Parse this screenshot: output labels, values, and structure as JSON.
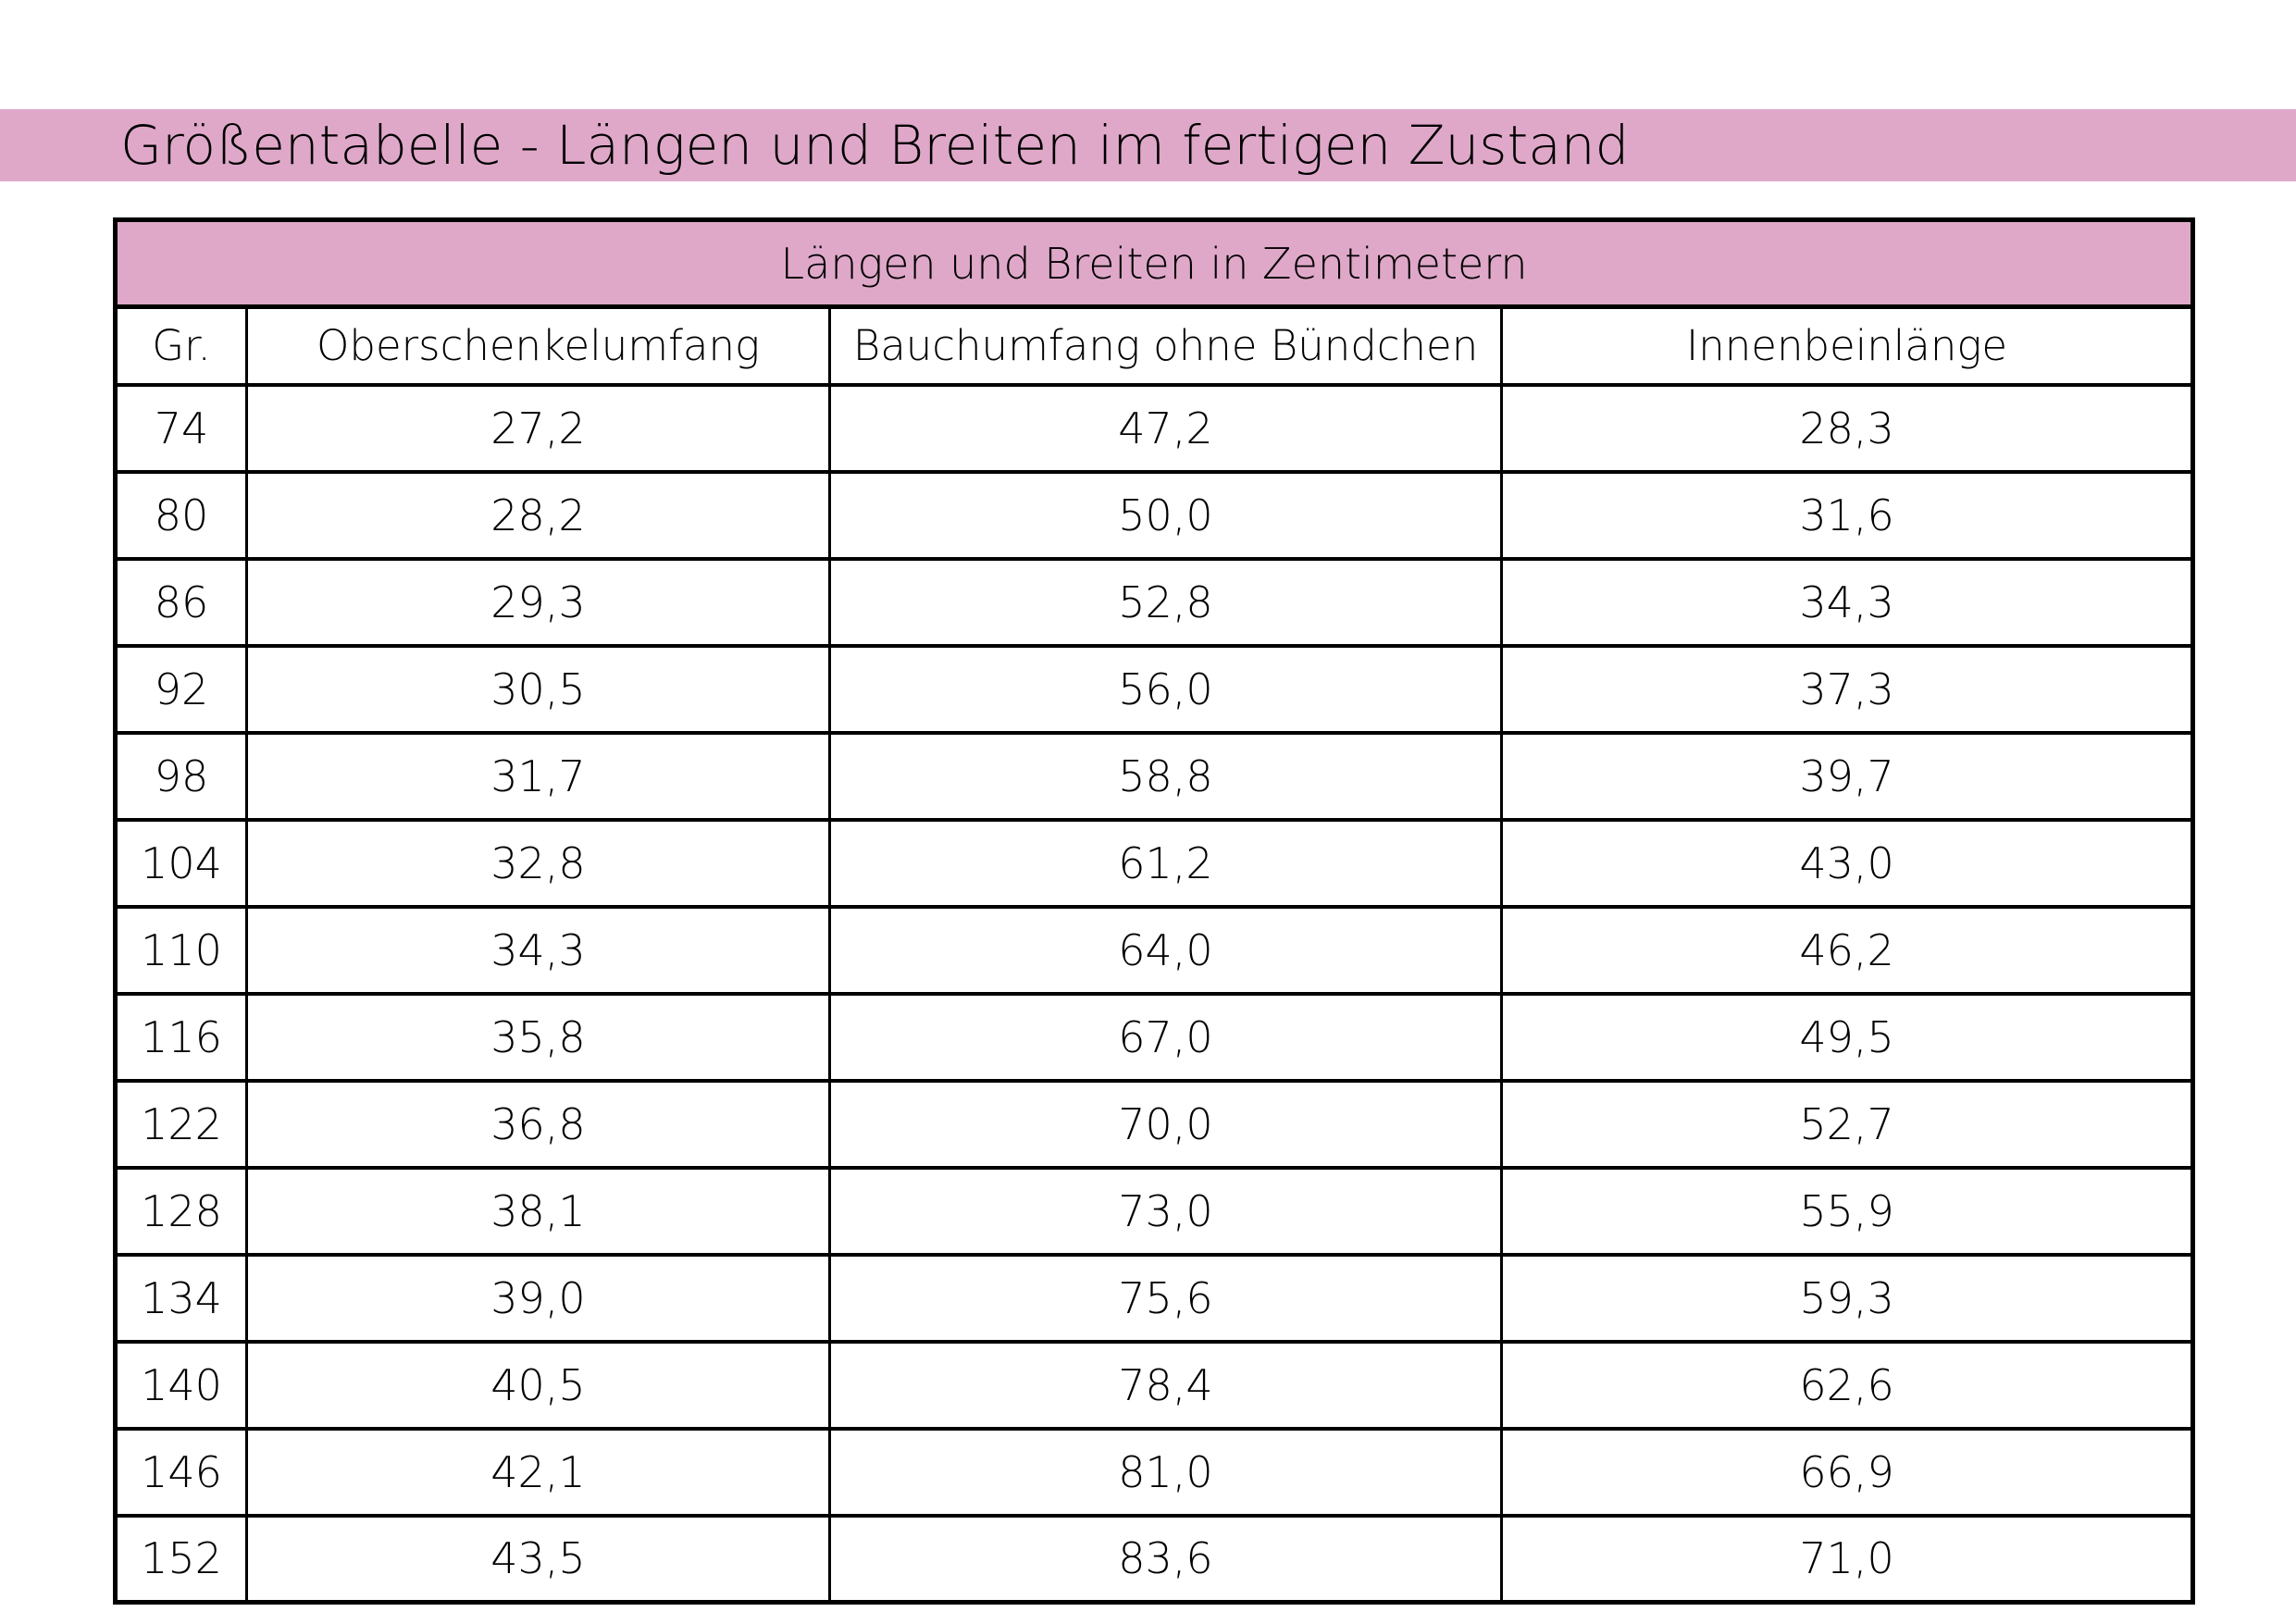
{
  "page_title": "Größentabelle - Längen und Breiten im fertigen Zustand",
  "colors": {
    "banner_pink": "#dfa8c9",
    "border_black": "#000000",
    "background": "#ffffff"
  },
  "table": {
    "header": "Längen und Breiten in Zentimetern",
    "columns": [
      "Gr.",
      "Oberschenkelumfang",
      "Bauchumfang ohne Bündchen",
      "Innenbeinlänge"
    ],
    "rows": [
      [
        "74",
        "27,2",
        "47,2",
        "28,3"
      ],
      [
        "80",
        "28,2",
        "50,0",
        "31,6"
      ],
      [
        "86",
        "29,3",
        "52,8",
        "34,3"
      ],
      [
        "92",
        "30,5",
        "56,0",
        "37,3"
      ],
      [
        "98",
        "31,7",
        "58,8",
        "39,7"
      ],
      [
        "104",
        "32,8",
        "61,2",
        "43,0"
      ],
      [
        "110",
        "34,3",
        "64,0",
        "46,2"
      ],
      [
        "116",
        "35,8",
        "67,0",
        "49,5"
      ],
      [
        "122",
        "36,8",
        "70,0",
        "52,7"
      ],
      [
        "128",
        "38,1",
        "73,0",
        "55,9"
      ],
      [
        "134",
        "39,0",
        "75,6",
        "59,3"
      ],
      [
        "140",
        "40,5",
        "78,4",
        "62,6"
      ],
      [
        "146",
        "42,1",
        "81,0",
        "66,9"
      ],
      [
        "152",
        "43,5",
        "83,6",
        "71,0"
      ]
    ]
  }
}
